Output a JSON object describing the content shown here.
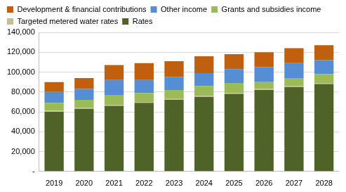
{
  "chart_data": {
    "type": "bar",
    "stacked": true,
    "grid": true,
    "legend": "top",
    "categories": [
      "2019",
      "2020",
      "2021",
      "2022",
      "2023",
      "2024",
      "2025",
      "2026",
      "2027",
      "2028"
    ],
    "series": [
      {
        "name": "Rates",
        "color": "#4f6228",
        "values": [
          60000,
          63000,
          66000,
          69000,
          72000,
          75000,
          78000,
          82000,
          85000,
          88000
        ]
      },
      {
        "name": "Targeted metered water rates",
        "color": "#c4bd97",
        "values": [
          1000,
          1000,
          1000,
          1000,
          1000,
          1000,
          1000,
          1000,
          1000,
          1000
        ]
      },
      {
        "name": "Grants and subsidies income",
        "color": "#9bbb59",
        "values": [
          8000,
          8000,
          10000,
          9000,
          9000,
          10000,
          10000,
          7000,
          8000,
          9000
        ]
      },
      {
        "name": "Other income",
        "color": "#558ed5",
        "values": [
          11000,
          11000,
          15000,
          13000,
          13000,
          13000,
          14000,
          15000,
          15000,
          14000
        ]
      },
      {
        "name": "Development & financial contributions",
        "color": "#c0600f",
        "values": [
          10000,
          11000,
          15000,
          17000,
          16000,
          17000,
          15000,
          15000,
          15000,
          15000
        ]
      }
    ],
    "ylim": [
      0,
      140000
    ],
    "yticks": [
      {
        "value": 0,
        "label": "-"
      },
      {
        "value": 20000,
        "label": "20,000"
      },
      {
        "value": 40000,
        "label": "40,000"
      },
      {
        "value": 60000,
        "label": "60,000"
      },
      {
        "value": 80000,
        "label": "80,000"
      },
      {
        "value": 100000,
        "label": "100,000"
      },
      {
        "value": 120000,
        "label": "120,000"
      },
      {
        "value": 140000,
        "label": "140,000"
      }
    ]
  }
}
